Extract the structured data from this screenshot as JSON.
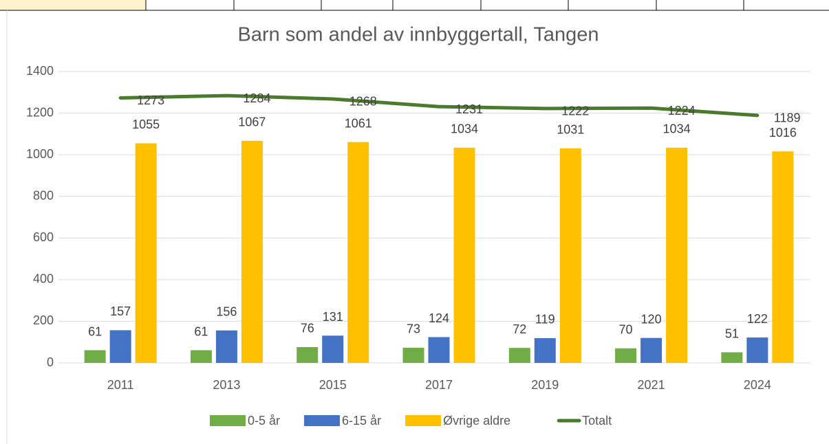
{
  "chart_data": {
    "type": "bar_line",
    "title": "Barn som andel av innbyggertall, Tangen",
    "categories": [
      "2011",
      "2013",
      "2015",
      "2017",
      "2019",
      "2021",
      "2024"
    ],
    "series": [
      {
        "name": "0-5 år",
        "color": "#70ad47",
        "type": "bar",
        "values": [
          61,
          61,
          76,
          73,
          72,
          70,
          51
        ]
      },
      {
        "name": "6-15 år",
        "color": "#4472c4",
        "type": "bar",
        "values": [
          157,
          156,
          131,
          124,
          119,
          120,
          122
        ]
      },
      {
        "name": "Øvrige aldre",
        "color": "#ffc000",
        "type": "bar",
        "values": [
          1055,
          1067,
          1061,
          1034,
          1031,
          1034,
          1016
        ]
      },
      {
        "name": "Totalt",
        "color": "#4a7a2c",
        "type": "line",
        "values": [
          1273,
          1284,
          1268,
          1231,
          1222,
          1224,
          1189
        ]
      }
    ],
    "ylim": [
      0,
      1400
    ],
    "yticks": [
      0,
      200,
      400,
      600,
      800,
      1000,
      1200,
      1400
    ],
    "grid": true,
    "legend": "bottom"
  }
}
